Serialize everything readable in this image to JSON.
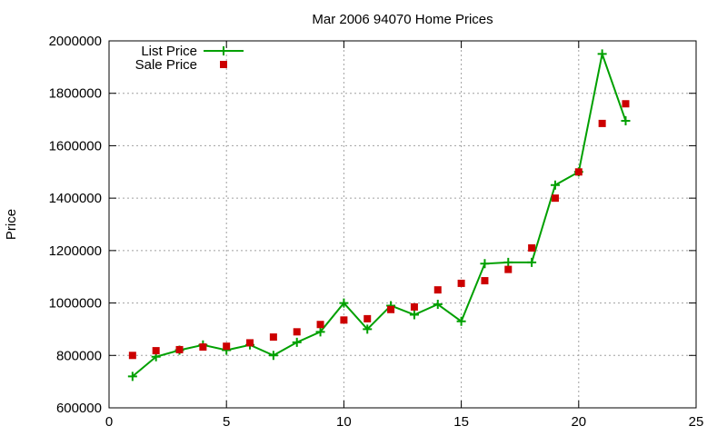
{
  "chart_data": {
    "type": "line",
    "title": "Mar 2006 94070 Home Prices",
    "xlabel": "",
    "ylabel": "Price",
    "xlim": [
      0,
      25
    ],
    "ylim": [
      600000,
      2000000
    ],
    "x_ticks": [
      0,
      5,
      10,
      15,
      20,
      25
    ],
    "y_ticks": [
      600000,
      800000,
      1000000,
      1200000,
      1400000,
      1600000,
      1800000,
      2000000
    ],
    "x_tick_labels": [
      "0",
      "5",
      "10",
      "15",
      "20",
      "25"
    ],
    "y_tick_labels": [
      "600000",
      "800000",
      "1000000",
      "1200000",
      "1400000",
      "1600000",
      "1800000",
      "2000000"
    ],
    "grid": true,
    "legend_position": "top-left",
    "series": [
      {
        "name": "List Price",
        "style": "line-with-plus-markers",
        "color": "#00a000",
        "x": [
          1,
          2,
          3,
          4,
          5,
          6,
          7,
          8,
          9,
          10,
          11,
          12,
          13,
          14,
          15,
          16,
          17,
          18,
          19,
          20,
          21,
          22
        ],
        "y": [
          720000,
          795000,
          820000,
          840000,
          820000,
          840000,
          800000,
          850000,
          890000,
          1000000,
          900000,
          990000,
          955000,
          995000,
          930000,
          1150000,
          1155000,
          1155000,
          1450000,
          1500000,
          1950000,
          1695000
        ]
      },
      {
        "name": "Sale Price",
        "style": "square-markers",
        "color": "#cc0000",
        "x": [
          1,
          2,
          3,
          4,
          5,
          6,
          7,
          8,
          9,
          10,
          11,
          12,
          13,
          14,
          15,
          16,
          17,
          18,
          19,
          20,
          21,
          22
        ],
        "y": [
          800000,
          818000,
          822000,
          832000,
          835000,
          848000,
          870000,
          890000,
          918000,
          935000,
          940000,
          975000,
          985000,
          1050000,
          1075000,
          1085000,
          1128000,
          1210000,
          1400000,
          1500000,
          1685000,
          1760000
        ]
      }
    ]
  }
}
